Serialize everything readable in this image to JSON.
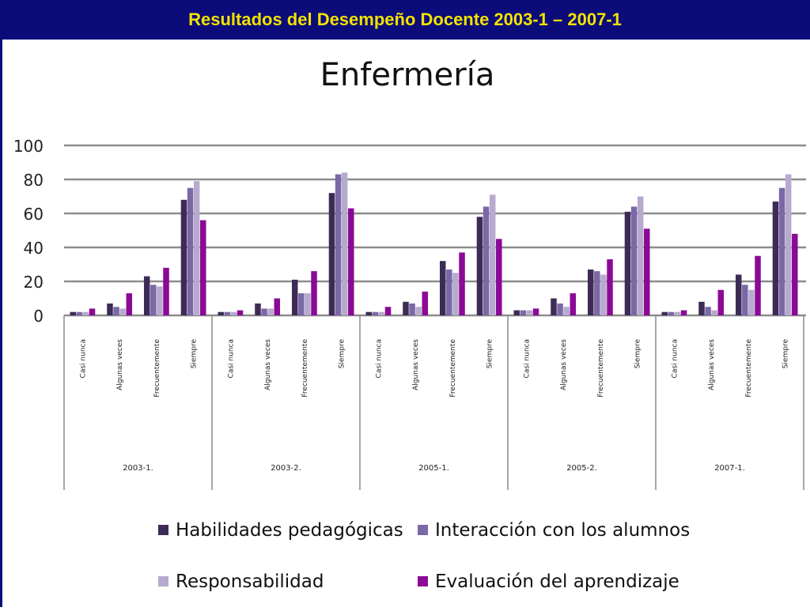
{
  "header": {
    "title": "Resultados del Desempeño Docente 2003-1 – 2007-1"
  },
  "colors": {
    "header_bg": "#0b0b7a",
    "header_text": "#f2e200",
    "series": [
      "#3d2b56",
      "#7b68a6",
      "#b8a9cf",
      "#8a0a96"
    ]
  },
  "chart_data": {
    "type": "bar",
    "title": "Enfermería",
    "ylim": [
      0,
      100
    ],
    "yticks": [
      0,
      20,
      40,
      60,
      80,
      100
    ],
    "grid": true,
    "legend_position": "bottom",
    "groups": [
      "2003-1.",
      "2003-2.",
      "2005-1.",
      "2005-2.",
      "2007-1."
    ],
    "subcategories": [
      "Casi nunca",
      "Algunas veces",
      "Frecuentemente",
      "Siempre"
    ],
    "series": [
      {
        "name": "Habilidades pedagógicas",
        "values": [
          2,
          7,
          23,
          68,
          2,
          7,
          21,
          72,
          2,
          8,
          32,
          58,
          3,
          10,
          27,
          61,
          2,
          8,
          24,
          67
        ]
      },
      {
        "name": "Interacción con los alumnos",
        "values": [
          2,
          5,
          18,
          75,
          2,
          4,
          13,
          83,
          2,
          7,
          27,
          64,
          3,
          7,
          26,
          64,
          2,
          5,
          18,
          75
        ]
      },
      {
        "name": "Responsabilidad",
        "values": [
          2,
          4,
          17,
          79,
          2,
          4,
          13,
          84,
          2,
          5,
          25,
          71,
          3,
          5,
          24,
          70,
          2,
          3,
          15,
          83
        ]
      },
      {
        "name": "Evaluación del aprendizaje",
        "values": [
          4,
          13,
          28,
          56,
          3,
          10,
          26,
          63,
          5,
          14,
          37,
          45,
          4,
          13,
          33,
          51,
          3,
          15,
          35,
          48
        ]
      }
    ]
  }
}
